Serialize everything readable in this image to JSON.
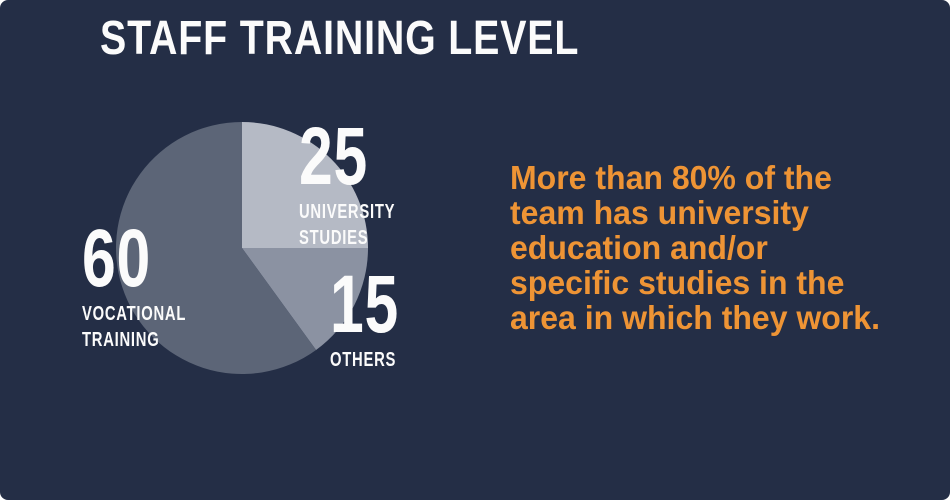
{
  "header": {
    "title": "STAFF TRAINING LEVEL"
  },
  "colors": {
    "background": "#242e46",
    "accent_orange": "#ee9435",
    "text_white": "#fbfbfb",
    "slice_university": "#b5bac5",
    "slice_others": "#8b92a2",
    "slice_vocational": "#5c6577"
  },
  "chart_data": {
    "type": "pie",
    "title": "STAFF TRAINING LEVEL",
    "start_angle_deg": 0,
    "direction": "clockwise",
    "legend_position": "around-chart",
    "slices": [
      {
        "label": "UNIVERSITY STUDIES",
        "value": 25,
        "color": "#b5bac5"
      },
      {
        "label": "OTHERS",
        "value": 15,
        "color": "#8b92a2"
      },
      {
        "label": "VOCATIONAL TRAINING",
        "value": 60,
        "color": "#5c6577"
      }
    ]
  },
  "labels": {
    "university": {
      "value": "25",
      "line1": "UNIVERSITY",
      "line2": "STUDIES"
    },
    "others": {
      "value": "15",
      "line1": "OTHERS"
    },
    "vocational": {
      "value": "60",
      "line1": "VOCATIONAL",
      "line2": "TRAINING"
    }
  },
  "annotation": {
    "lines": [
      "More than 80% of the",
      "team has university",
      "education and/or",
      "specific studies in the",
      "area in which they work."
    ]
  }
}
